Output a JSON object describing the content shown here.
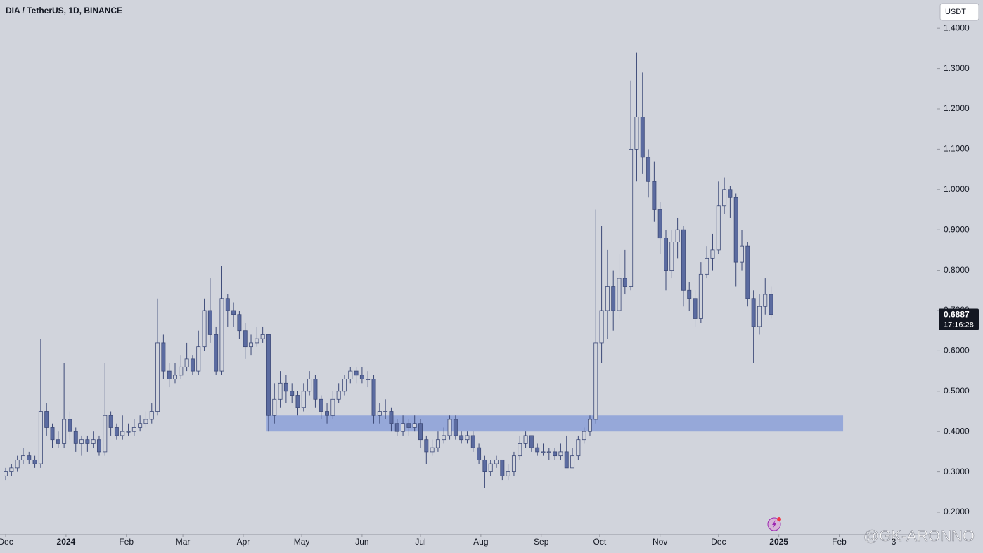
{
  "chart_data": {
    "type": "candlestick",
    "title": "DIA / TetherUS, 1D, BINANCE",
    "currency": "USDT",
    "watermark": "@GK-ARONNO",
    "up_color": "#d1d4dc",
    "down_color": "#5b6ba0",
    "outline_color": "#3d4a78",
    "x": [
      0,
      3,
      6,
      9,
      12,
      15,
      18,
      21,
      24,
      27,
      30,
      33,
      36,
      39,
      42,
      45,
      48,
      51,
      54,
      57,
      60,
      63,
      66,
      69,
      72,
      75,
      78,
      81,
      84,
      87,
      90,
      93,
      96,
      99,
      102,
      105,
      108,
      111,
      114,
      117,
      120,
      123,
      126,
      129,
      132,
      135,
      138,
      141,
      144,
      147,
      150,
      153,
      156,
      159,
      162,
      165,
      168,
      171,
      174,
      177,
      180,
      183,
      186,
      189,
      192,
      195,
      198,
      201,
      204,
      207,
      210,
      213,
      216,
      219,
      222,
      225,
      228,
      231,
      234,
      237,
      240,
      243,
      246,
      249,
      252,
      255,
      258,
      261,
      264,
      267,
      270,
      273,
      276,
      279,
      282,
      285,
      288,
      291,
      294,
      297,
      300,
      303,
      306,
      309,
      312,
      315,
      318,
      321,
      324,
      327,
      330,
      333,
      336,
      339,
      342,
      345,
      348,
      351,
      354,
      357,
      360,
      363,
      366,
      369,
      372,
      375,
      378,
      381,
      384,
      387,
      390,
      393
    ],
    "open": [
      0.29,
      0.3,
      0.31,
      0.33,
      0.34,
      0.33,
      0.32,
      0.45,
      0.41,
      0.38,
      0.37,
      0.43,
      0.4,
      0.37,
      0.38,
      0.37,
      0.38,
      0.35,
      0.44,
      0.41,
      0.39,
      0.4,
      0.4,
      0.41,
      0.42,
      0.43,
      0.45,
      0.62,
      0.55,
      0.53,
      0.54,
      0.56,
      0.58,
      0.55,
      0.61,
      0.7,
      0.64,
      0.55,
      0.73,
      0.7,
      0.69,
      0.65,
      0.61,
      0.62,
      0.63,
      0.64,
      0.44,
      0.48,
      0.52,
      0.5,
      0.49,
      0.46,
      0.5,
      0.53,
      0.48,
      0.45,
      0.44,
      0.48,
      0.5,
      0.53,
      0.55,
      0.54,
      0.53,
      0.53,
      0.44,
      0.45,
      0.45,
      0.42,
      0.4,
      0.42,
      0.41,
      0.42,
      0.38,
      0.35,
      0.36,
      0.38,
      0.39,
      0.43,
      0.39,
      0.38,
      0.39,
      0.36,
      0.33,
      0.3,
      0.32,
      0.33,
      0.29,
      0.3,
      0.34,
      0.37,
      0.39,
      0.36,
      0.35,
      0.35,
      0.35,
      0.34,
      0.35,
      0.31,
      0.34,
      0.38,
      0.4,
      0.43,
      0.62,
      0.7,
      0.76,
      0.7,
      0.78,
      0.76,
      1.1,
      1.18,
      1.08,
      1.02,
      0.95,
      0.88,
      0.8,
      0.87,
      0.9,
      0.75,
      0.73,
      0.68,
      0.79,
      0.83,
      0.85,
      0.96,
      1.0,
      0.98,
      0.82,
      0.86,
      0.73,
      0.66,
      0.71,
      0.74
    ],
    "high": [
      0.31,
      0.32,
      0.34,
      0.36,
      0.35,
      0.34,
      0.63,
      0.47,
      0.42,
      0.4,
      0.57,
      0.45,
      0.41,
      0.39,
      0.39,
      0.4,
      0.39,
      0.57,
      0.45,
      0.42,
      0.44,
      0.42,
      0.43,
      0.44,
      0.45,
      0.47,
      0.73,
      0.64,
      0.57,
      0.57,
      0.59,
      0.62,
      0.59,
      0.65,
      0.73,
      0.78,
      0.66,
      0.81,
      0.74,
      0.72,
      0.7,
      0.67,
      0.64,
      0.66,
      0.66,
      0.64,
      0.52,
      0.55,
      0.54,
      0.52,
      0.5,
      0.52,
      0.55,
      0.54,
      0.49,
      0.47,
      0.5,
      0.52,
      0.54,
      0.56,
      0.56,
      0.56,
      0.55,
      0.54,
      0.47,
      0.48,
      0.46,
      0.43,
      0.44,
      0.43,
      0.44,
      0.43,
      0.39,
      0.38,
      0.4,
      0.41,
      0.44,
      0.44,
      0.4,
      0.4,
      0.4,
      0.37,
      0.34,
      0.33,
      0.34,
      0.33,
      0.32,
      0.35,
      0.39,
      0.4,
      0.39,
      0.37,
      0.37,
      0.36,
      0.36,
      0.37,
      0.39,
      0.36,
      0.39,
      0.41,
      0.44,
      0.95,
      0.91,
      0.85,
      0.8,
      0.84,
      0.85,
      1.27,
      1.34,
      1.29,
      1.1,
      1.07,
      0.97,
      0.9,
      0.9,
      0.93,
      0.91,
      0.77,
      0.75,
      0.82,
      0.86,
      0.89,
      1.02,
      1.03,
      1.01,
      0.99,
      0.9,
      0.87,
      0.75,
      0.74,
      0.78,
      0.76
    ],
    "low": [
      0.28,
      0.29,
      0.3,
      0.32,
      0.32,
      0.31,
      0.31,
      0.39,
      0.36,
      0.36,
      0.36,
      0.38,
      0.35,
      0.34,
      0.35,
      0.36,
      0.34,
      0.34,
      0.39,
      0.38,
      0.38,
      0.39,
      0.39,
      0.4,
      0.41,
      0.42,
      0.44,
      0.53,
      0.51,
      0.52,
      0.53,
      0.55,
      0.54,
      0.54,
      0.6,
      0.62,
      0.54,
      0.54,
      0.66,
      0.66,
      0.63,
      0.58,
      0.59,
      0.61,
      0.62,
      0.4,
      0.42,
      0.46,
      0.47,
      0.47,
      0.44,
      0.45,
      0.49,
      0.46,
      0.43,
      0.42,
      0.43,
      0.47,
      0.49,
      0.52,
      0.52,
      0.52,
      0.51,
      0.42,
      0.42,
      0.43,
      0.4,
      0.39,
      0.39,
      0.39,
      0.4,
      0.36,
      0.32,
      0.34,
      0.35,
      0.37,
      0.38,
      0.38,
      0.37,
      0.37,
      0.35,
      0.32,
      0.26,
      0.29,
      0.31,
      0.28,
      0.28,
      0.29,
      0.33,
      0.36,
      0.35,
      0.34,
      0.34,
      0.33,
      0.33,
      0.33,
      0.31,
      0.31,
      0.33,
      0.37,
      0.39,
      0.42,
      0.57,
      0.63,
      0.65,
      0.68,
      0.74,
      0.75,
      1.02,
      1.04,
      0.98,
      0.92,
      0.84,
      0.75,
      0.78,
      0.83,
      0.71,
      0.7,
      0.66,
      0.67,
      0.78,
      0.8,
      0.84,
      0.94,
      0.93,
      0.76,
      0.8,
      0.71,
      0.57,
      0.64,
      0.69,
      0.68
    ],
    "close": [
      0.3,
      0.31,
      0.33,
      0.34,
      0.33,
      0.32,
      0.45,
      0.41,
      0.38,
      0.37,
      0.43,
      0.4,
      0.37,
      0.38,
      0.37,
      0.38,
      0.35,
      0.44,
      0.41,
      0.39,
      0.4,
      0.4,
      0.41,
      0.42,
      0.43,
      0.45,
      0.62,
      0.55,
      0.53,
      0.54,
      0.56,
      0.58,
      0.55,
      0.61,
      0.7,
      0.64,
      0.55,
      0.73,
      0.7,
      0.69,
      0.65,
      0.61,
      0.62,
      0.63,
      0.64,
      0.44,
      0.48,
      0.52,
      0.5,
      0.49,
      0.46,
      0.5,
      0.53,
      0.48,
      0.45,
      0.44,
      0.48,
      0.5,
      0.53,
      0.55,
      0.54,
      0.53,
      0.53,
      0.44,
      0.45,
      0.45,
      0.42,
      0.4,
      0.42,
      0.41,
      0.42,
      0.38,
      0.35,
      0.36,
      0.38,
      0.39,
      0.43,
      0.39,
      0.38,
      0.39,
      0.36,
      0.33,
      0.3,
      0.32,
      0.33,
      0.29,
      0.3,
      0.34,
      0.37,
      0.39,
      0.36,
      0.35,
      0.35,
      0.35,
      0.34,
      0.35,
      0.31,
      0.34,
      0.38,
      0.4,
      0.43,
      0.62,
      0.7,
      0.76,
      0.7,
      0.78,
      0.76,
      1.1,
      1.18,
      1.08,
      1.02,
      0.95,
      0.88,
      0.8,
      0.87,
      0.9,
      0.75,
      0.73,
      0.68,
      0.79,
      0.83,
      0.85,
      0.96,
      1.0,
      0.98,
      0.82,
      0.86,
      0.73,
      0.66,
      0.71,
      0.74,
      0.69
    ],
    "zones": [
      {
        "x": [
          134,
          430
        ],
        "y": [
          0.4,
          0.44
        ],
        "color": "#8fa3d8"
      }
    ],
    "last_price": 0.6887,
    "countdown": "17:16:28",
    "xlim": [
      -2.9,
      478
    ],
    "xticks": [
      {
        "value": 0,
        "label": "Dec"
      },
      {
        "value": 31,
        "label": "2024"
      },
      {
        "value": 62,
        "label": "Feb"
      },
      {
        "value": 91,
        "label": "Mar"
      },
      {
        "value": 122,
        "label": "Apr"
      },
      {
        "value": 152,
        "label": "May"
      },
      {
        "value": 183,
        "label": "Jun"
      },
      {
        "value": 213,
        "label": "Jul"
      },
      {
        "value": 244,
        "label": "Aug"
      },
      {
        "value": 275,
        "label": "Sep"
      },
      {
        "value": 305,
        "label": "Oct"
      },
      {
        "value": 336,
        "label": "Nov"
      },
      {
        "value": 366,
        "label": "Dec"
      },
      {
        "value": 397,
        "label": "2025"
      },
      {
        "value": 428,
        "label": "Feb"
      },
      {
        "value": 456,
        "label": "3"
      }
    ],
    "ylim": [
      0.146,
      1.47
    ],
    "yticks": [
      {
        "value": 0.2,
        "label": "0.2000"
      },
      {
        "value": 0.3,
        "label": "0.3000"
      },
      {
        "value": 0.4,
        "label": "0.4000"
      },
      {
        "value": 0.5,
        "label": "0.5000"
      },
      {
        "value": 0.6,
        "label": "0.6000"
      },
      {
        "value": 0.7,
        "label": "0.7000"
      },
      {
        "value": 0.8,
        "label": "0.8000"
      },
      {
        "value": 0.9,
        "label": "0.9000"
      },
      {
        "value": 1.0,
        "label": "1.0000"
      },
      {
        "value": 1.1,
        "label": "1.1000"
      },
      {
        "value": 1.2,
        "label": "1.2000"
      },
      {
        "value": 1.3,
        "label": "1.3000"
      },
      {
        "value": 1.4,
        "label": "1.4000"
      }
    ],
    "grid": false
  }
}
